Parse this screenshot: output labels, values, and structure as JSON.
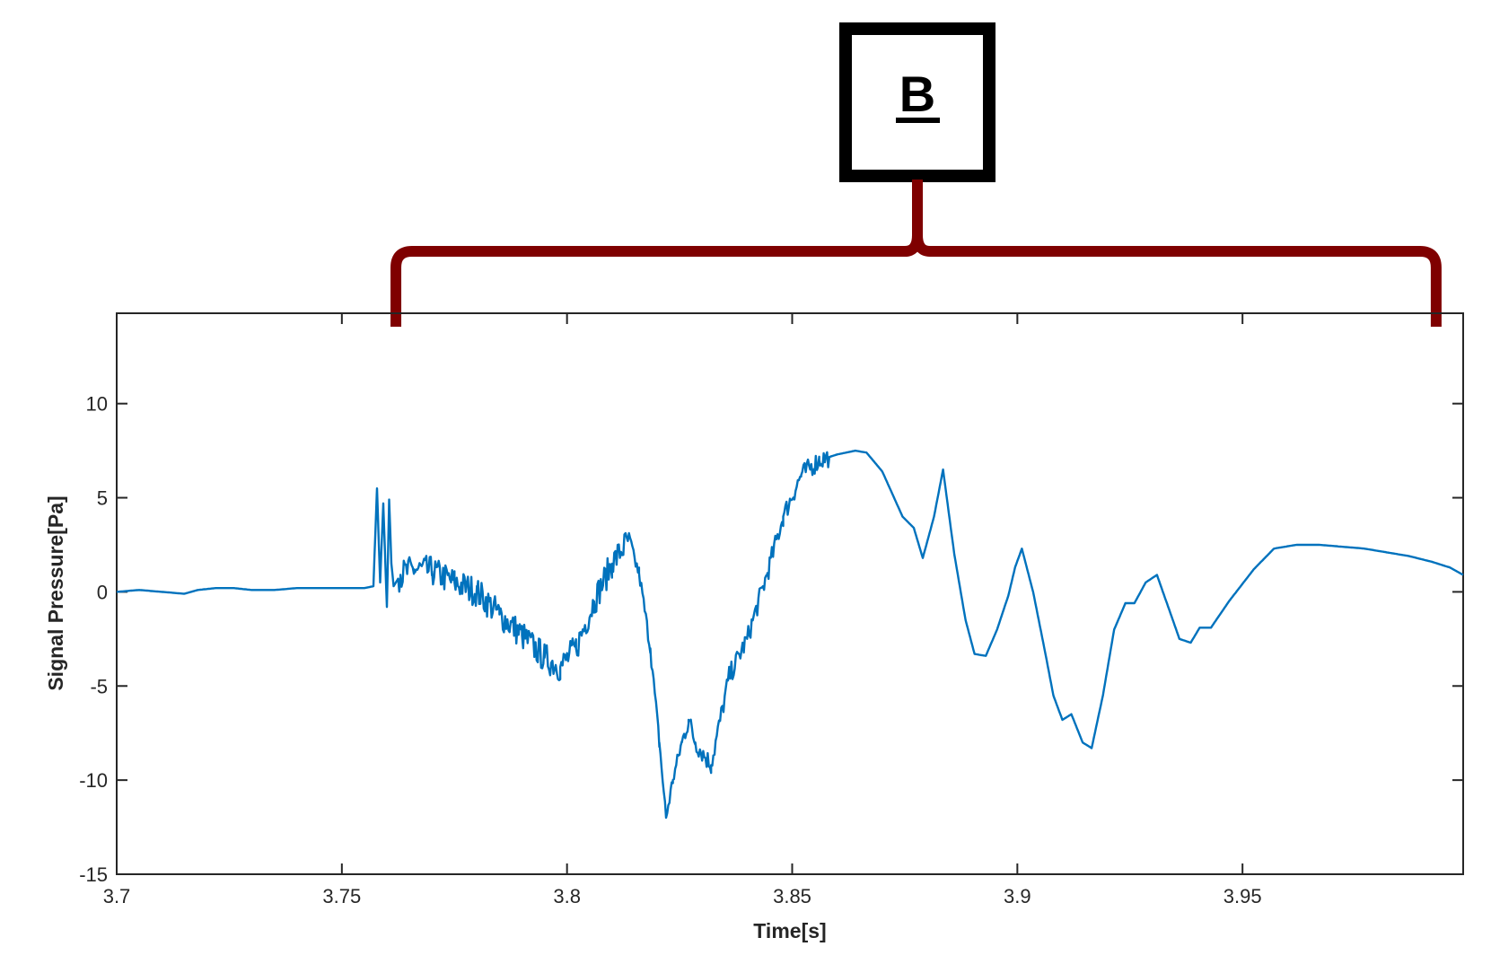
{
  "annotation": {
    "label": "B",
    "box_color": "#000000",
    "brace_color": "#7f0000",
    "x_range": [
      3.762,
      3.993
    ]
  },
  "chart_data": {
    "type": "line",
    "title": "",
    "xlabel": "Time[s]",
    "ylabel": "Signal Pressure[Pa]",
    "xlim": [
      3.7,
      3.999
    ],
    "ylim": [
      -15,
      14.8
    ],
    "xticks": [
      3.7,
      3.75,
      3.8,
      3.85,
      3.9,
      3.95
    ],
    "xtick_labels": [
      "3.7",
      "3.75",
      "3.8",
      "3.85",
      "3.9",
      "3.95"
    ],
    "yticks": [
      -15,
      -10,
      -5,
      0,
      5,
      10
    ],
    "ytick_labels": [
      "-15",
      "-10",
      "-5",
      "0",
      "5",
      "10"
    ],
    "grid": false,
    "legend": "none",
    "line_color": "#0072bd",
    "series": [
      {
        "x": [
          3.7,
          3.705,
          3.71,
          3.715,
          3.718,
          3.722,
          3.726,
          3.73,
          3.735,
          3.74,
          3.745,
          3.75,
          3.755,
          3.757,
          3.7578,
          3.7585,
          3.7592,
          3.76,
          3.7605,
          3.761,
          3.7615,
          3.763,
          3.766,
          3.77,
          3.775,
          3.78,
          3.785,
          3.79,
          3.795,
          3.7985,
          3.802,
          3.806,
          3.81,
          3.8135,
          3.816,
          3.8185,
          3.8205,
          3.822,
          3.8235,
          3.8255,
          3.827,
          3.8285,
          3.832,
          3.836,
          3.84,
          3.8445,
          3.848,
          3.852,
          3.856,
          3.86,
          3.864,
          3.8665,
          3.87,
          3.8745,
          3.877,
          3.879,
          3.8815,
          3.8835,
          3.886,
          3.8885,
          3.8905,
          3.893,
          3.8955,
          3.898,
          3.8995,
          3.901,
          3.9035,
          3.906,
          3.908,
          3.91,
          3.912,
          3.9145,
          3.9165,
          3.919,
          3.9215,
          3.924,
          3.926,
          3.9285,
          3.931,
          3.9335,
          3.936,
          3.9385,
          3.9405,
          3.943,
          3.947,
          3.9525,
          3.957,
          3.962,
          3.967,
          3.972,
          3.977,
          3.982,
          3.987,
          3.992,
          3.996,
          3.999
        ],
        "y": [
          0.0,
          0.1,
          0.0,
          -0.1,
          0.1,
          0.2,
          0.2,
          0.1,
          0.1,
          0.2,
          0.2,
          0.2,
          0.2,
          0.3,
          5.5,
          0.5,
          4.7,
          -0.8,
          4.9,
          1.5,
          0.3,
          0.9,
          1.2,
          1.1,
          0.5,
          0.0,
          -1.2,
          -2.3,
          -3.5,
          -4.0,
          -3.0,
          -0.5,
          1.5,
          2.7,
          1.0,
          -3.0,
          -8.0,
          -12.0,
          -10.0,
          -8.0,
          -6.8,
          -8.0,
          -9.2,
          -4.5,
          -2.5,
          1.0,
          4.0,
          6.2,
          7.0,
          7.3,
          7.5,
          7.4,
          6.4,
          4.0,
          3.4,
          1.8,
          4.0,
          6.5,
          2.0,
          -1.5,
          -3.3,
          -3.4,
          -2.0,
          -0.2,
          1.3,
          2.3,
          0.0,
          -3.0,
          -5.5,
          -6.8,
          -6.5,
          -8.0,
          -8.3,
          -5.5,
          -2.0,
          -0.6,
          -0.6,
          0.5,
          0.9,
          -0.8,
          -2.5,
          -2.7,
          -1.9,
          -1.9,
          -0.5,
          1.2,
          2.3,
          2.5,
          2.5,
          2.4,
          2.3,
          2.1,
          1.9,
          1.6,
          1.3,
          0.9
        ]
      }
    ]
  }
}
